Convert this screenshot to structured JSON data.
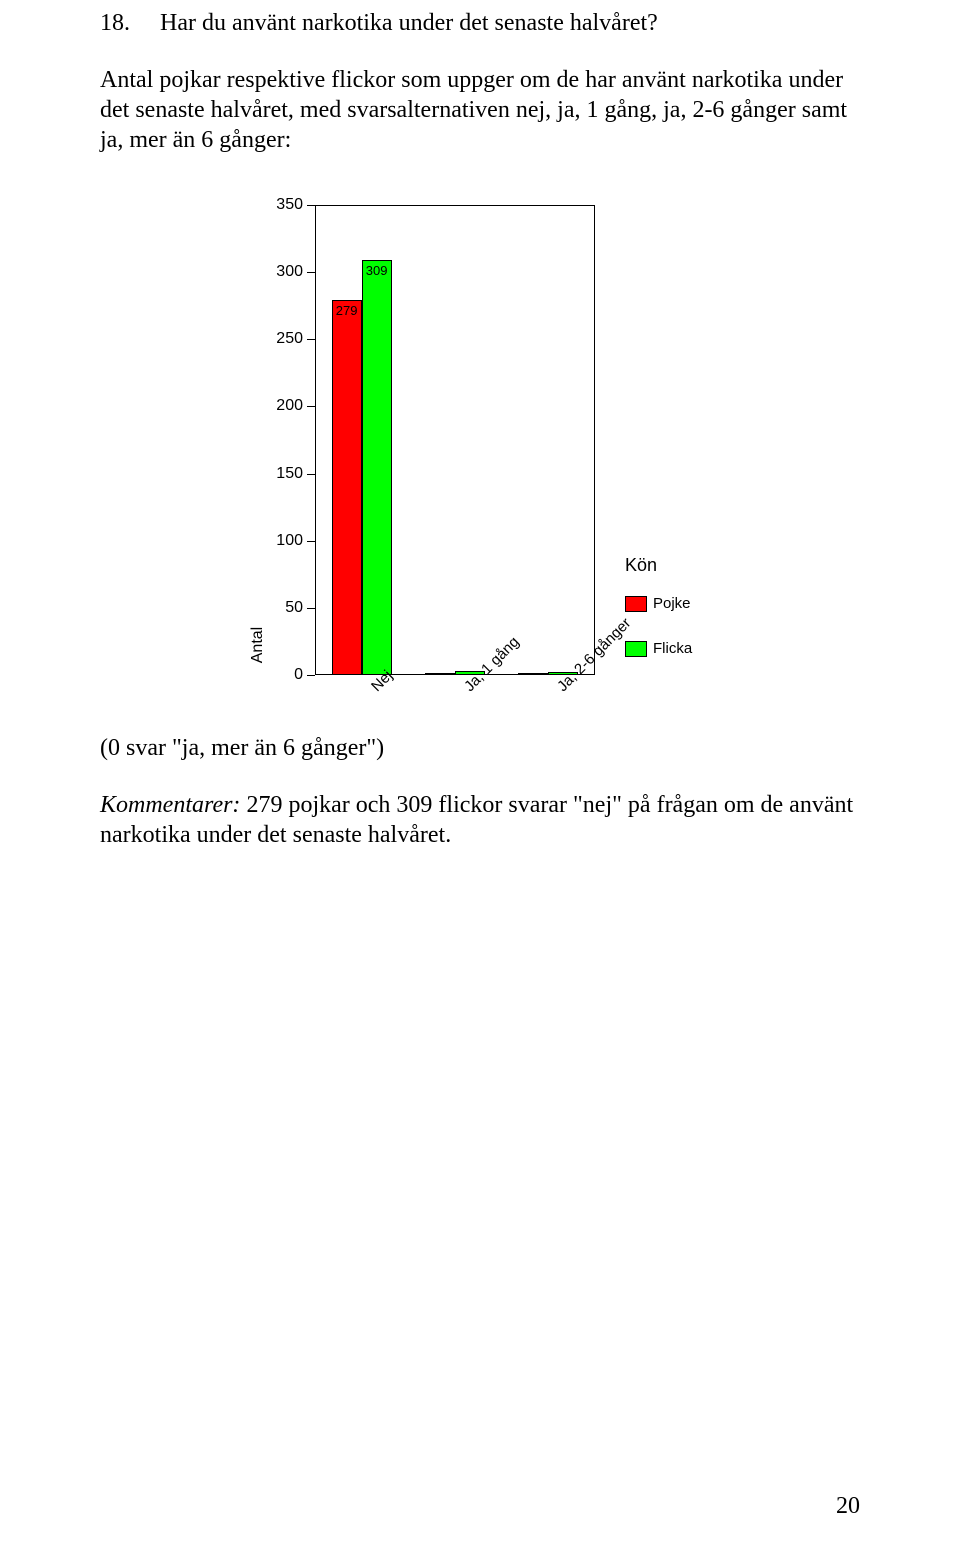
{
  "heading": {
    "number": "18.",
    "text": "Har du använt narkotika under det senaste halvåret?"
  },
  "intro": "Antal pojkar respektive flickor som uppger om de har använt narkotika under det senaste halvåret, med svarsalternativen nej, ja, 1 gång, ja, 2-6 gånger samt ja, mer än 6 gånger:",
  "chart": {
    "type": "bar",
    "y_axis_title": "Antal",
    "ylim": [
      0,
      350
    ],
    "ytick_step": 50,
    "yticks": [
      0,
      50,
      100,
      150,
      200,
      250,
      300,
      350
    ],
    "categories": [
      "Nej",
      "Ja, 1 gång",
      "Ja, 2-6 gånger"
    ],
    "series": [
      {
        "name": "Pojke",
        "color": "#ff0000",
        "values": [
          279,
          1,
          1
        ]
      },
      {
        "name": "Flicka",
        "color": "#00ff00",
        "values": [
          309,
          3,
          2
        ]
      }
    ],
    "bar_labels_visible": [
      [
        true,
        false,
        false
      ],
      [
        true,
        false,
        false
      ]
    ],
    "legend_title": "Kön",
    "background_color": "#ffffff",
    "border_color": "#000000",
    "label_fontsize": 16
  },
  "note": "(0 svar \"ja, mer än 6 gånger\")",
  "comment": {
    "label": "Kommentarer:",
    "text": " 279 pojkar och 309 flickor svarar \"nej\" på frågan om de använt narkotika under det senaste halvåret."
  },
  "page_number": "20"
}
